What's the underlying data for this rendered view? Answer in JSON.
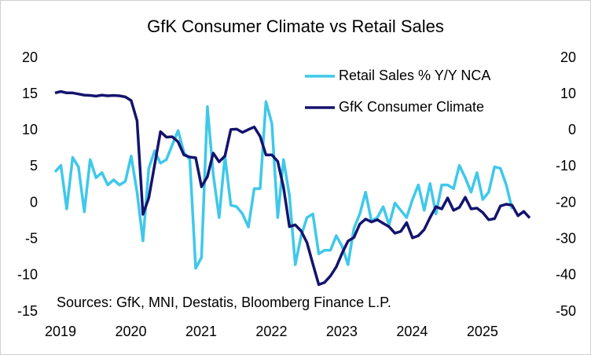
{
  "chart_data": {
    "type": "line",
    "title": "GfK Consumer Climate vs Retail Sales",
    "annotation": "Sources: GfK, MNI, Destatis, Bloomberg Finance L.P.",
    "categories": [
      "2019",
      null,
      null,
      null,
      null,
      null,
      null,
      null,
      null,
      null,
      null,
      null,
      "2020",
      null,
      null,
      null,
      null,
      null,
      null,
      null,
      null,
      null,
      null,
      null,
      "2021",
      null,
      null,
      null,
      null,
      null,
      null,
      null,
      null,
      null,
      null,
      null,
      "2022",
      null,
      null,
      null,
      null,
      null,
      null,
      null,
      null,
      null,
      null,
      null,
      "2023",
      null,
      null,
      null,
      null,
      null,
      null,
      null,
      null,
      null,
      null,
      null,
      "2024",
      null,
      null,
      null,
      null,
      null,
      null,
      null,
      null,
      null,
      null,
      null,
      "2025",
      null,
      null,
      null,
      null,
      null,
      null,
      null,
      null,
      null
    ],
    "series": [
      {
        "name": "Retail Sales % Y/Y NCA",
        "color": "#3fc8ea",
        "axis": "y",
        "values": [
          4.3,
          5.2,
          -0.8,
          6.3,
          5.0,
          -1.2,
          6.0,
          3.5,
          4.2,
          2.5,
          3.2,
          2.5,
          3.0,
          6.5,
          1.5,
          -5.2,
          4.8,
          7.2,
          5.5,
          6.0,
          8.0,
          10.0,
          7.0,
          6.0,
          -9.0,
          -7.5,
          13.3,
          4.0,
          -2.0,
          6.5,
          -0.3,
          -0.5,
          -1.5,
          -3.3,
          2.0,
          2.0,
          14.0,
          11.0,
          -2.0,
          6.0,
          1.0,
          -8.5,
          -4.5,
          -2.0,
          -1.5,
          -7.0,
          -6.5,
          -6.5,
          -4.5,
          -6.0,
          -8.5,
          -3.5,
          -1.5,
          1.5,
          -2.5,
          -2.0,
          -0.5,
          -3.0,
          0.0,
          -1.0,
          -2.0,
          0.5,
          2.5,
          -1.0,
          2.7,
          -1.5,
          2.5,
          2.5,
          2.0,
          5.2,
          3.5,
          1.5,
          4.2,
          0.5,
          1.5,
          5.0,
          4.8,
          2.5,
          -0.8,
          null,
          null,
          null
        ]
      },
      {
        "name": "GfK Consumer Climate",
        "color": "#14146e",
        "axis": "y2",
        "values": [
          10.4,
          10.8,
          10.4,
          10.4,
          10.1,
          9.8,
          9.7,
          9.5,
          9.8,
          9.6,
          9.7,
          9.6,
          9.3,
          8.3,
          2.7,
          -23.1,
          -18.6,
          -9.4,
          -0.3,
          -1.8,
          -1.7,
          -3.1,
          -6.7,
          -7.3,
          -7.5,
          -15.5,
          -12.7,
          -6.2,
          -8.6,
          -7.0,
          0.3,
          0.4,
          -0.5,
          0.3,
          1.0,
          -1.6,
          -6.7,
          -6.7,
          -8.5,
          -15.7,
          -26.5,
          -26.0,
          -27.7,
          -30.9,
          -36.8,
          -42.5,
          -41.9,
          -40.1,
          -37.6,
          -33.8,
          -30.5,
          -29.5,
          -25.8,
          -24.4,
          -25.2,
          -24.6,
          -25.6,
          -26.5,
          -28.3,
          -27.8,
          -25.4,
          -29.6,
          -29.0,
          -27.3,
          -24.0,
          -21.0,
          -21.6,
          -18.6,
          -22.0,
          -21.2,
          -18.4,
          -21.6,
          -21.4,
          -22.6,
          -24.6,
          -24.3,
          -20.8,
          -20.3,
          -20.6,
          -23.5,
          -22.3,
          -24.1
        ]
      }
    ],
    "ylim": [
      -15,
      20
    ],
    "yticks": [
      20,
      15,
      10,
      5,
      0,
      -5,
      -10,
      -15
    ],
    "y2lim": [
      -50,
      20
    ],
    "y2ticks": [
      20,
      10,
      0,
      -10,
      -20,
      -30,
      -40,
      -50
    ],
    "legend": "upper right",
    "grid": false
  }
}
